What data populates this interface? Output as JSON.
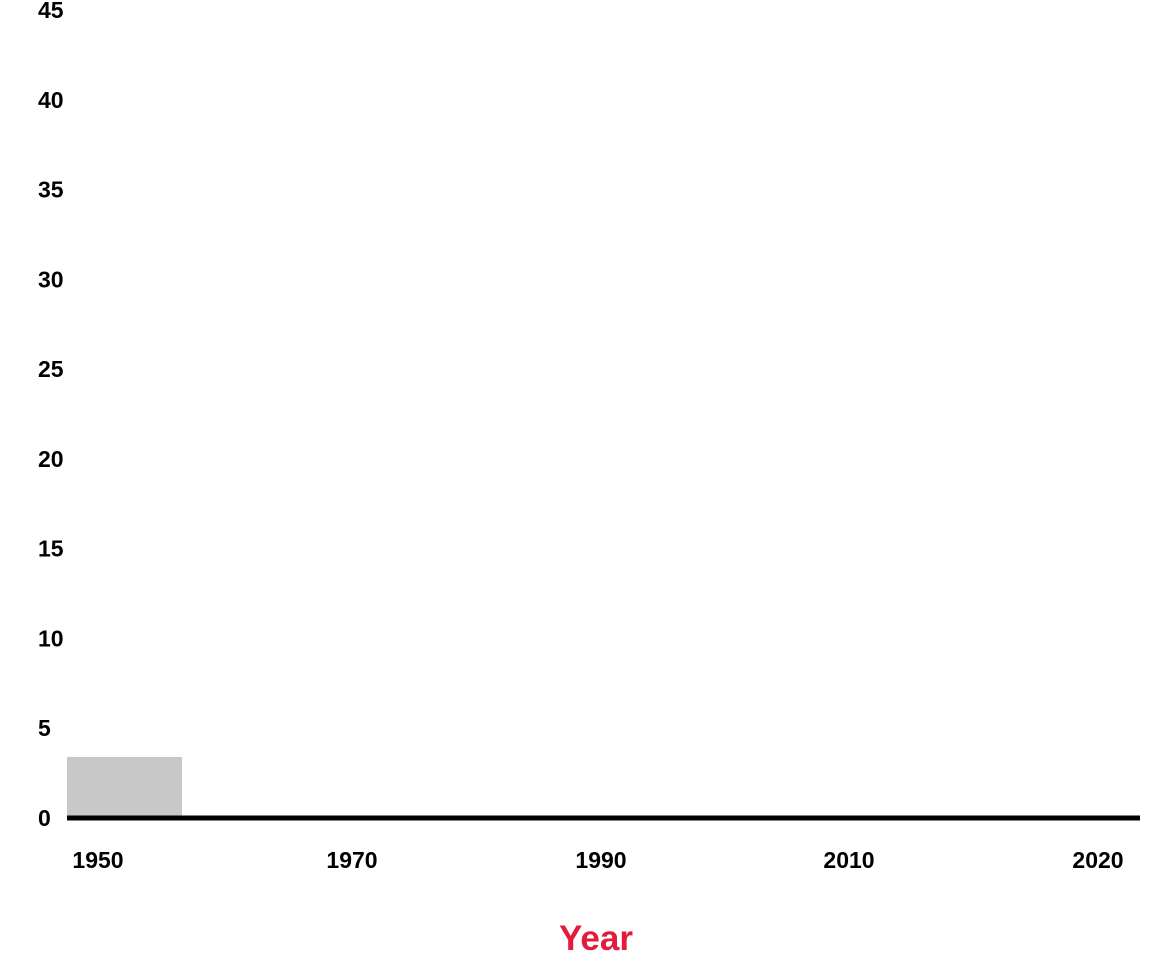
{
  "chart_data": {
    "type": "bar",
    "title": "",
    "xlabel": "Year",
    "ylabel": "",
    "x_ticks": [
      "1950",
      "1970",
      "1990",
      "2010",
      "2020"
    ],
    "y_ticks": [
      0,
      5,
      10,
      15,
      20,
      25,
      30,
      35,
      40,
      45
    ],
    "ylim": [
      0,
      45
    ],
    "grid": false,
    "legend": "none",
    "bars": [
      {
        "category": "1950",
        "value": 3.4
      }
    ],
    "colors": {
      "bar": "#c8c8c8",
      "baseline": "#000000",
      "xlabel": "#e31b3c",
      "tick_text": "#000000"
    }
  }
}
